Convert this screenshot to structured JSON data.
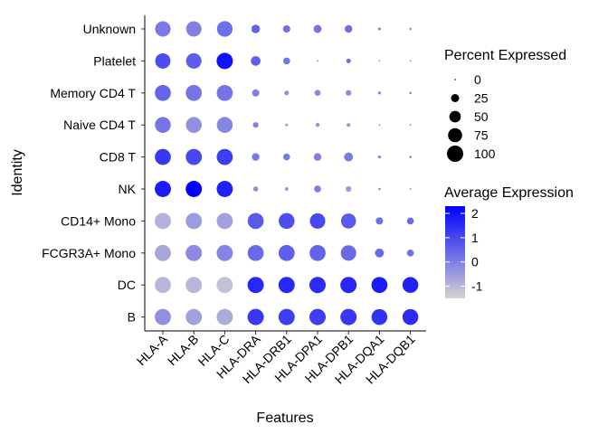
{
  "chart_data": {
    "type": "dotplot",
    "xlabel": "Features",
    "ylabel": "Identity",
    "features": [
      "HLA-A",
      "HLA-B",
      "HLA-C",
      "HLA-DRA",
      "HLA-DRB1",
      "HLA-DPA1",
      "HLA-DPB1",
      "HLA-DQA1",
      "HLA-DQB1"
    ],
    "identities": [
      "Unknown",
      "Platelet",
      "Memory CD4 T",
      "Naive CD4 T",
      "CD8 T",
      "NK",
      "CD14+ Mono",
      "FCGR3A+ Mono",
      "DC",
      "B"
    ],
    "percent_expressed": [
      [
        90,
        90,
        92,
        28,
        20,
        25,
        22,
        3,
        2
      ],
      [
        88,
        90,
        100,
        35,
        18,
        1,
        8,
        1,
        1
      ],
      [
        97,
        97,
        97,
        20,
        8,
        14,
        12,
        3,
        2
      ],
      [
        95,
        95,
        95,
        12,
        3,
        6,
        5,
        1,
        1
      ],
      [
        97,
        98,
        98,
        22,
        18,
        22,
        30,
        3,
        2
      ],
      [
        99,
        99,
        99,
        10,
        5,
        18,
        12,
        2,
        1
      ],
      [
        99,
        99,
        99,
        97,
        95,
        90,
        85,
        20,
        18
      ],
      [
        99,
        99,
        99,
        97,
        97,
        97,
        90,
        30,
        18
      ],
      [
        99,
        99,
        99,
        100,
        100,
        100,
        100,
        97,
        95
      ],
      [
        99,
        99,
        99,
        100,
        100,
        100,
        100,
        95,
        95
      ]
    ],
    "average_expression": [
      [
        0.1,
        0.0,
        0.3,
        0.5,
        0.3,
        0.2,
        0.3,
        0.0,
        0.0
      ],
      [
        0.9,
        0.6,
        2.0,
        0.6,
        0.2,
        0.0,
        0.3,
        0.0,
        0.0
      ],
      [
        0.5,
        0.2,
        0.2,
        0.0,
        -0.3,
        -0.2,
        -0.2,
        0.0,
        0.0
      ],
      [
        0.2,
        -0.3,
        -0.1,
        0.0,
        -0.5,
        -0.3,
        -0.4,
        0.0,
        0.0
      ],
      [
        1.3,
        1.0,
        1.2,
        0.1,
        0.1,
        0.0,
        0.1,
        0.0,
        0.0
      ],
      [
        1.8,
        2.6,
        1.7,
        -0.3,
        -0.5,
        0.0,
        -0.5,
        0.0,
        0.0
      ],
      [
        -0.9,
        -0.5,
        -0.6,
        0.7,
        0.9,
        1.0,
        0.7,
        0.3,
        0.4
      ],
      [
        -0.7,
        -0.2,
        -0.1,
        0.4,
        0.6,
        0.5,
        0.4,
        0.4,
        0.3
      ],
      [
        -1.0,
        -1.0,
        -1.2,
        1.6,
        1.6,
        1.5,
        1.6,
        1.8,
        1.7
      ],
      [
        -0.3,
        -0.6,
        -0.8,
        1.3,
        1.2,
        1.2,
        1.3,
        1.4,
        1.5
      ]
    ],
    "color_scale": {
      "low": "#d3d3d3",
      "high": "#0000ff",
      "domain": [
        -1.5,
        2.3
      ]
    },
    "legend_position": "right",
    "grid": false,
    "size_legend": {
      "title": "Percent Expressed",
      "breaks": [
        0,
        25,
        50,
        75,
        100
      ],
      "labels": [
        "0",
        "25",
        "50",
        "75",
        "100"
      ]
    },
    "color_legend": {
      "title": "Average Expression",
      "breaks": [
        2,
        1,
        0,
        -1
      ],
      "labels": [
        "2",
        "1",
        "0",
        "-1"
      ]
    }
  }
}
